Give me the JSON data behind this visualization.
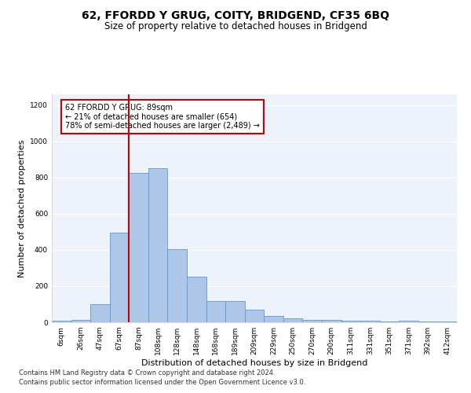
{
  "title1": "62, FFORDD Y GRUG, COITY, BRIDGEND, CF35 6BQ",
  "title2": "Size of property relative to detached houses in Bridgend",
  "xlabel": "Distribution of detached houses by size in Bridgend",
  "ylabel": "Number of detached properties",
  "categories": [
    "6sqm",
    "26sqm",
    "47sqm",
    "67sqm",
    "87sqm",
    "108sqm",
    "128sqm",
    "148sqm",
    "168sqm",
    "189sqm",
    "209sqm",
    "229sqm",
    "250sqm",
    "270sqm",
    "290sqm",
    "311sqm",
    "331sqm",
    "351sqm",
    "371sqm",
    "392sqm",
    "412sqm"
  ],
  "values": [
    10,
    15,
    100,
    495,
    825,
    850,
    405,
    252,
    118,
    118,
    68,
    35,
    22,
    15,
    15,
    10,
    10,
    5,
    10,
    5,
    3
  ],
  "bar_color": "#aec6e8",
  "bar_edge_color": "#5b9bd5",
  "vline_x_index": 4,
  "vline_color": "#cc0000",
  "annotation_text": "62 FFORDD Y GRUG: 89sqm\n← 21% of detached houses are smaller (654)\n78% of semi-detached houses are larger (2,489) →",
  "annotation_box_color": "#ffffff",
  "annotation_box_edge_color": "#cc0000",
  "footnote1": "Contains HM Land Registry data © Crown copyright and database right 2024.",
  "footnote2": "Contains public sector information licensed under the Open Government Licence v3.0.",
  "ylim": [
    0,
    1260
  ],
  "yticks": [
    0,
    200,
    400,
    600,
    800,
    1000,
    1200
  ],
  "background_color": "#eef2fb",
  "grid_color": "#ffffff",
  "title1_fontsize": 10,
  "title2_fontsize": 8.5,
  "xlabel_fontsize": 8,
  "ylabel_fontsize": 8,
  "tick_fontsize": 6.5,
  "annotation_fontsize": 7,
  "footnote_fontsize": 6
}
